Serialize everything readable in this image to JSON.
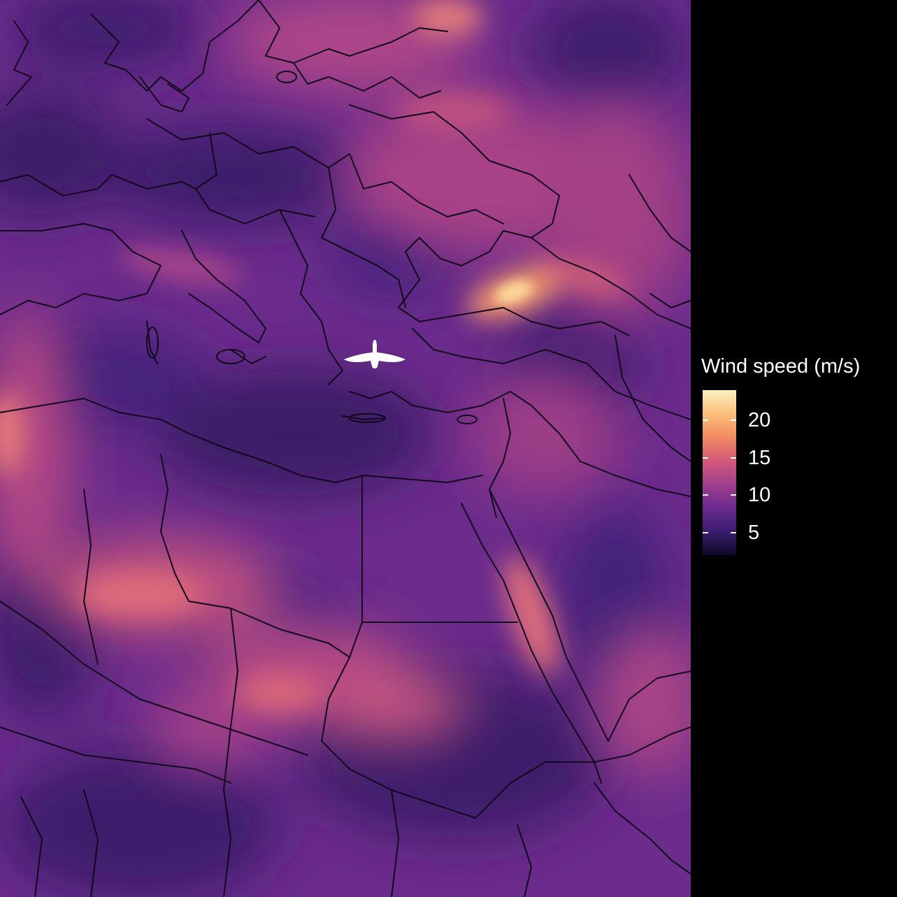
{
  "legend": {
    "title": "Wind speed (m/s)",
    "ticks": [
      20,
      15,
      10,
      5
    ],
    "range": [
      2,
      24
    ],
    "colors": [
      "#0d0829",
      "#3b1c6e",
      "#6a2a8f",
      "#a23e8e",
      "#d35a78",
      "#f28a63",
      "#fbbf7a",
      "#fcf1c0"
    ]
  },
  "marker": {
    "icon": "bird-icon",
    "color": "#ffffff"
  },
  "map": {
    "borders_color": "#12061e"
  }
}
